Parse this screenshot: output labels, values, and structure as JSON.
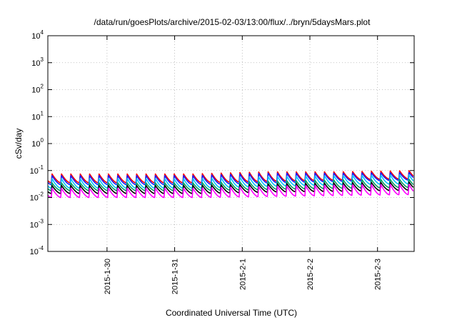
{
  "chart_data": {
    "type": "line",
    "title": "/data/run/goesPlots/archive/2015-02-03/13:00/flux/../bryn/5daysMars.plot",
    "xlabel": "Coordinated Universal Time (UTC)",
    "ylabel": "cSv/day",
    "yscale": "log",
    "ylim": [
      0.0001,
      10000
    ],
    "xlim": [
      "2015-01-29T03:00",
      "2015-02-03T13:00"
    ],
    "grid": true,
    "x_ticks": [
      {
        "label": "2015-1-30",
        "date": "2015-01-30T00:00"
      },
      {
        "label": "2015-1-31",
        "date": "2015-01-31T00:00"
      },
      {
        "label": "2015-2-1",
        "date": "2015-02-01T00:00"
      },
      {
        "label": "2015-2-2",
        "date": "2015-02-02T00:00"
      },
      {
        "label": "2015-2-3",
        "date": "2015-02-03T00:00"
      }
    ],
    "y_ticks": [
      {
        "base": "10",
        "exp": "-4",
        "value": 0.0001
      },
      {
        "base": "10",
        "exp": "-3",
        "value": 0.001
      },
      {
        "base": "10",
        "exp": "-2",
        "value": 0.01
      },
      {
        "base": "10",
        "exp": "-1",
        "value": 0.1
      },
      {
        "base": "10",
        "exp": "0",
        "value": 1
      },
      {
        "base": "10",
        "exp": "1",
        "value": 10
      },
      {
        "base": "10",
        "exp": "2",
        "value": 100
      },
      {
        "base": "10",
        "exp": "3",
        "value": 1000
      },
      {
        "base": "10",
        "exp": "4",
        "value": 10000
      }
    ],
    "cycles_per_day": 7.2,
    "series": [
      {
        "color": "#ff0000",
        "peaks": [
          0.075,
          0.075,
          0.075,
          0.09,
          0.09,
          0.1
        ],
        "troughs": [
          0.035,
          0.035,
          0.035,
          0.04,
          0.045,
          0.05
        ]
      },
      {
        "color": "#1a1aff",
        "peaks": [
          0.065,
          0.065,
          0.065,
          0.08,
          0.08,
          0.085
        ],
        "troughs": [
          0.03,
          0.03,
          0.03,
          0.035,
          0.04,
          0.045
        ]
      },
      {
        "color": "#00c0ff",
        "peaks": [
          0.05,
          0.05,
          0.05,
          0.06,
          0.065,
          0.07
        ],
        "troughs": [
          0.022,
          0.022,
          0.022,
          0.026,
          0.03,
          0.032
        ]
      },
      {
        "color": "#00a060",
        "peaks": [
          0.035,
          0.035,
          0.035,
          0.04,
          0.045,
          0.048
        ],
        "troughs": [
          0.018,
          0.018,
          0.018,
          0.02,
          0.022,
          0.024
        ]
      },
      {
        "color": "#000000",
        "peaks": [
          0.028,
          0.028,
          0.028,
          0.032,
          0.035,
          0.038
        ],
        "troughs": [
          0.014,
          0.014,
          0.014,
          0.016,
          0.017,
          0.019
        ]
      },
      {
        "color": "#ff00ff",
        "peaks": [
          0.022,
          0.022,
          0.022,
          0.026,
          0.029,
          0.031
        ],
        "troughs": [
          0.01,
          0.01,
          0.01,
          0.011,
          0.012,
          0.013
        ]
      }
    ]
  }
}
